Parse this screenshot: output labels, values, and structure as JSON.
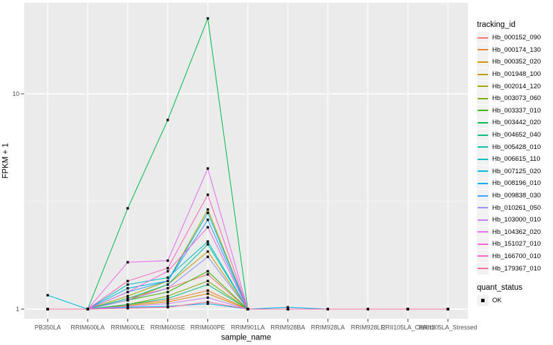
{
  "figure": {
    "background": "#FFFFFF",
    "panel_background": "#EBEBEB",
    "gridline_color": "#FFFFFF",
    "point_color": "#000000"
  },
  "axis": {
    "tick_color": "#333333",
    "tick_label_color": "#4D4D4D",
    "y_tick_labels": [
      "1",
      "10"
    ]
  },
  "legend": {
    "tracking_title": "tracking_id",
    "quant_title": "quant_status",
    "quant_items": [
      {
        "label": "OK",
        "key_shape": "black-square"
      }
    ],
    "key_fill": "#F2F2F2"
  },
  "chart_data": {
    "type": "line",
    "xlabel": "sample_name",
    "ylabel": "FPKM + 1",
    "y_scale": "log10",
    "y_ticks": [
      1,
      10
    ],
    "y_minor_ticks": [
      3.162
    ],
    "ylim": [
      0.9,
      25
    ],
    "grid": true,
    "legend_position": "right",
    "point_shape": "filled-black-square",
    "categories": [
      "PB350LA",
      "RRIM600LA",
      "RRIM600LE",
      "RRIM600SE",
      "RRIM600PE",
      "RRIM901LA",
      "RRIM928BA",
      "RRIM928LA",
      "RRIM928LE",
      "RRII105LA_Control",
      "RRII105LA_Stressed"
    ],
    "series": [
      {
        "name": "Hb_000152_090",
        "color": "#F8766D",
        "values": [
          1,
          1,
          1.12,
          1.25,
          1.45,
          1,
          1,
          1,
          1,
          1,
          1
        ]
      },
      {
        "name": "Hb_000174_130",
        "color": "#EA8331",
        "values": [
          1,
          1,
          1.05,
          1.1,
          1.22,
          1,
          1,
          1,
          1,
          1,
          1
        ]
      },
      {
        "name": "Hb_000352_020",
        "color": "#D89000",
        "values": [
          1,
          1,
          1.04,
          1.08,
          1.18,
          1,
          1,
          1,
          1,
          1,
          1
        ]
      },
      {
        "name": "Hb_001948_100",
        "color": "#C09B00",
        "values": [
          1,
          1,
          1.1,
          1.3,
          1.85,
          1,
          1,
          1,
          1,
          1,
          1
        ]
      },
      {
        "name": "Hb_002014_120",
        "color": "#A3A500",
        "values": [
          1,
          1,
          1.15,
          1.35,
          2.9,
          1,
          1,
          1,
          1,
          1,
          1
        ]
      },
      {
        "name": "Hb_003073_060",
        "color": "#7CAE00",
        "values": [
          1,
          1,
          1.05,
          1.15,
          1.35,
          1,
          1,
          1,
          1,
          1,
          1
        ]
      },
      {
        "name": "Hb_003337_010",
        "color": "#39B600",
        "values": [
          1,
          1,
          1.1,
          1.2,
          1.5,
          1,
          1,
          1,
          1,
          1,
          1
        ]
      },
      {
        "name": "Hb_003442_020",
        "color": "#00BB4E",
        "values": [
          1,
          1,
          2.94,
          7.56,
          22.4,
          1,
          1,
          1,
          1,
          1,
          1
        ]
      },
      {
        "name": "Hb_004652_040",
        "color": "#00BF7D",
        "values": [
          1,
          1,
          1.05,
          1.12,
          1.3,
          1,
          1,
          1,
          1,
          1,
          1
        ]
      },
      {
        "name": "Hb_005428_010",
        "color": "#00C1A3",
        "values": [
          1,
          1,
          1.12,
          1.3,
          2.0,
          1,
          1,
          1,
          1,
          1,
          1
        ]
      },
      {
        "name": "Hb_006615_110",
        "color": "#00BFC4",
        "values": [
          1,
          1,
          1.3,
          1.4,
          2.06,
          1,
          1,
          1,
          1,
          1,
          1
        ]
      },
      {
        "name": "Hb_007125_020",
        "color": "#00BAE0",
        "values": [
          1.16,
          1,
          1.25,
          1.35,
          2.8,
          1,
          1,
          1,
          1,
          1,
          1
        ]
      },
      {
        "name": "Hb_008196_010",
        "color": "#00B0F6",
        "values": [
          1,
          1,
          1.02,
          1.03,
          1.06,
          1,
          1.02,
          1,
          1,
          1,
          1
        ]
      },
      {
        "name": "Hb_009838_030",
        "color": "#35A2FF",
        "values": [
          1,
          1,
          1.2,
          1.35,
          2.6,
          1,
          1,
          1,
          1,
          1,
          1
        ]
      },
      {
        "name": "Hb_010261_050",
        "color": "#9590FF",
        "values": [
          1,
          1,
          1.1,
          1.25,
          1.75,
          1,
          1,
          1,
          1,
          1,
          1
        ]
      },
      {
        "name": "Hb_103000_010",
        "color": "#C77CFF",
        "values": [
          1,
          1,
          1.03,
          1.06,
          1.13,
          1,
          1,
          1,
          1,
          1,
          1
        ]
      },
      {
        "name": "Hb_104362_020",
        "color": "#E76BF3",
        "values": [
          1,
          1,
          1.65,
          1.68,
          4.5,
          1,
          1,
          1,
          1,
          1,
          1
        ]
      },
      {
        "name": "Hb_151027_010",
        "color": "#FA62DB",
        "values": [
          1,
          1,
          1.2,
          1.5,
          2.4,
          1,
          1,
          1,
          1,
          1,
          1
        ]
      },
      {
        "name": "Hb_166700_010",
        "color": "#FF62BC",
        "values": [
          1,
          1,
          1.35,
          1.55,
          3.4,
          1,
          1,
          1,
          1,
          1,
          1
        ]
      },
      {
        "name": "Hb_179367_010",
        "color": "#FF6A98",
        "values": [
          1,
          1,
          1.01,
          1.02,
          1.08,
          1,
          1,
          1,
          1,
          1,
          1
        ]
      }
    ]
  }
}
